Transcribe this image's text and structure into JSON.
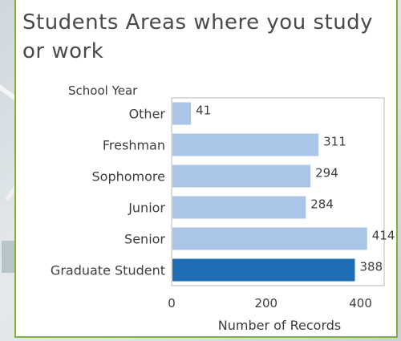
{
  "chart_data": {
    "type": "bar",
    "orientation": "horizontal",
    "title": "Students Areas where you study or work",
    "category_axis_title": "School Year",
    "xlabel": "Number of Records",
    "categories": [
      "Other",
      "Freshman",
      "Sophomore",
      "Junior",
      "Senior",
      "Graduate Student"
    ],
    "values": [
      41,
      311,
      294,
      284,
      414,
      388
    ],
    "value_labels": [
      "41",
      "311",
      "294",
      "284",
      "414",
      "388"
    ],
    "highlighted_category": "Graduate Student",
    "xlim": [
      0,
      450
    ],
    "xticks": [
      0,
      200,
      400
    ],
    "xtick_labels": [
      "0",
      "200",
      "400"
    ],
    "grid": false,
    "legend": "none",
    "colors": {
      "bar": "#a9c6e8",
      "bar_highlight": "#1f6eb3",
      "frame": "#b8b8b8",
      "panel_border": "#7fb23a"
    }
  }
}
